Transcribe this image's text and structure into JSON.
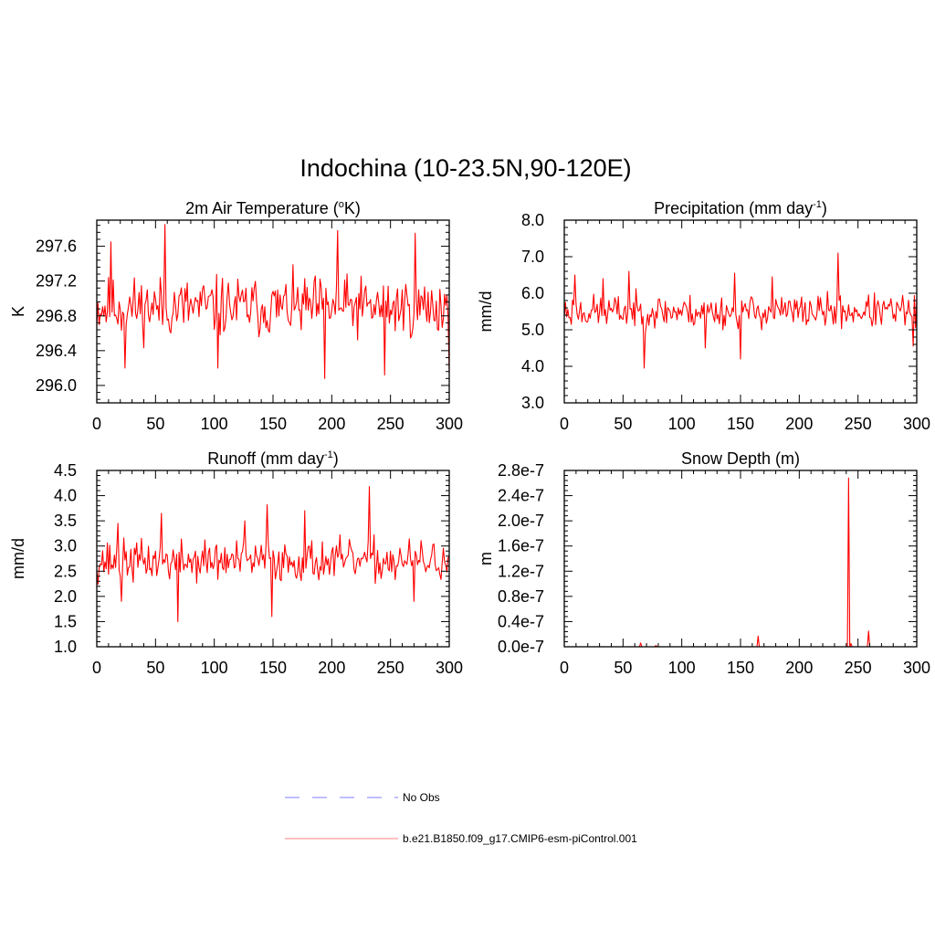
{
  "title": "Indochina (10-23.5N,90-120E)",
  "legend": {
    "entries": [
      {
        "label": "No Obs",
        "color": "#9999ff",
        "style": "dashed"
      },
      {
        "label": "b.e21.B1850.f09_g17.CMIP6-esm-piControl.001",
        "color": "#ff9999",
        "style": "solid"
      }
    ]
  },
  "chart_data": [
    {
      "type": "line",
      "title_main": "2m Air Temperature (",
      "title_sup": "o",
      "title_tail": "K)",
      "ylabel": "K",
      "xlim": [
        0,
        300
      ],
      "ylim": [
        295.8,
        297.9
      ],
      "xticks": [
        "0",
        "50",
        "100",
        "150",
        "200",
        "250",
        "300"
      ],
      "xtick_values": [
        0,
        50,
        100,
        150,
        200,
        250,
        300
      ],
      "yticks": [
        "296.0",
        "296.4",
        "296.8",
        "297.2",
        "297.6"
      ],
      "ytick_values": [
        296.0,
        296.4,
        296.8,
        297.2,
        297.6
      ],
      "color": "#ff0000",
      "gen": {
        "mean": 296.9,
        "amp": 0.32,
        "seed": 11
      },
      "spikes": [
        [
          12,
          297.65
        ],
        [
          24,
          296.2
        ],
        [
          58,
          297.85
        ],
        [
          103,
          296.2
        ],
        [
          194,
          296.08
        ],
        [
          205,
          297.78
        ],
        [
          245,
          296.12
        ],
        [
          271,
          297.75
        ],
        [
          300,
          296.15
        ]
      ]
    },
    {
      "type": "line",
      "title_main": "Precipitation (mm day",
      "title_sup": "-1",
      "title_tail": ")",
      "ylabel": "mm/d",
      "xlim": [
        0,
        300
      ],
      "ylim": [
        3.0,
        8.0
      ],
      "xticks": [
        "0",
        "50",
        "100",
        "150",
        "200",
        "250",
        "300"
      ],
      "xtick_values": [
        0,
        50,
        100,
        150,
        200,
        250,
        300
      ],
      "yticks": [
        "3.0",
        "4.0",
        "5.0",
        "6.0",
        "7.0",
        "8.0"
      ],
      "ytick_values": [
        3.0,
        4.0,
        5.0,
        6.0,
        7.0,
        8.0
      ],
      "color": "#ff0000",
      "gen": {
        "mean": 5.5,
        "amp": 0.42,
        "seed": 23
      },
      "spikes": [
        [
          9,
          6.5
        ],
        [
          33,
          6.4
        ],
        [
          55,
          6.6
        ],
        [
          68,
          3.95
        ],
        [
          120,
          4.5
        ],
        [
          145,
          6.55
        ],
        [
          150,
          4.2
        ],
        [
          177,
          6.45
        ],
        [
          233,
          7.1
        ],
        [
          297,
          4.55
        ]
      ]
    },
    {
      "type": "line",
      "title_main": "Runoff (mm day",
      "title_sup": "-1",
      "title_tail": ")",
      "ylabel": "mm/d",
      "xlim": [
        0,
        300
      ],
      "ylim": [
        1.0,
        4.5
      ],
      "xticks": [
        "0",
        "50",
        "100",
        "150",
        "200",
        "250",
        "300"
      ],
      "xtick_values": [
        0,
        50,
        100,
        150,
        200,
        250,
        300
      ],
      "yticks": [
        "1.0",
        "1.5",
        "2.0",
        "2.5",
        "3.0",
        "3.5",
        "4.0",
        "4.5"
      ],
      "ytick_values": [
        1.0,
        1.5,
        2.0,
        2.5,
        3.0,
        3.5,
        4.0,
        4.5
      ],
      "color": "#ff0000",
      "gen": {
        "mean": 2.7,
        "amp": 0.38,
        "seed": 37
      },
      "spikes": [
        [
          18,
          3.45
        ],
        [
          21,
          1.9
        ],
        [
          55,
          3.65
        ],
        [
          69,
          1.5
        ],
        [
          126,
          3.5
        ],
        [
          145,
          3.82
        ],
        [
          149,
          1.6
        ],
        [
          177,
          3.7
        ],
        [
          232,
          4.18
        ],
        [
          270,
          1.9
        ]
      ]
    },
    {
      "type": "line",
      "title_main": "Snow Depth (m)",
      "title_sup": "",
      "title_tail": "",
      "ylabel": "m",
      "xlim": [
        0,
        300
      ],
      "ylim": [
        0,
        2.8e-07
      ],
      "xticks": [
        "0",
        "50",
        "100",
        "150",
        "200",
        "250",
        "300"
      ],
      "xtick_values": [
        0,
        50,
        100,
        150,
        200,
        250,
        300
      ],
      "yticks": [
        "0.0e-7",
        "0.4e-7",
        "0.8e-7",
        "1.2e-7",
        "1.6e-7",
        "2.0e-7",
        "2.4e-7",
        "2.8e-7"
      ],
      "ytick_values": [
        0,
        4e-08,
        8e-08,
        1.2e-07,
        1.6e-07,
        2e-07,
        2.4e-07,
        2.8e-07
      ],
      "color": "#ff0000",
      "gen": {
        "mean": 0,
        "amp": 0,
        "seed": 1
      },
      "spikes": [
        [
          65,
          6e-09
        ],
        [
          78,
          2e-09
        ],
        [
          165,
          1.7e-08
        ],
        [
          242,
          2.68e-07
        ],
        [
          244,
          5e-09
        ],
        [
          259,
          2.5e-08
        ]
      ]
    }
  ]
}
